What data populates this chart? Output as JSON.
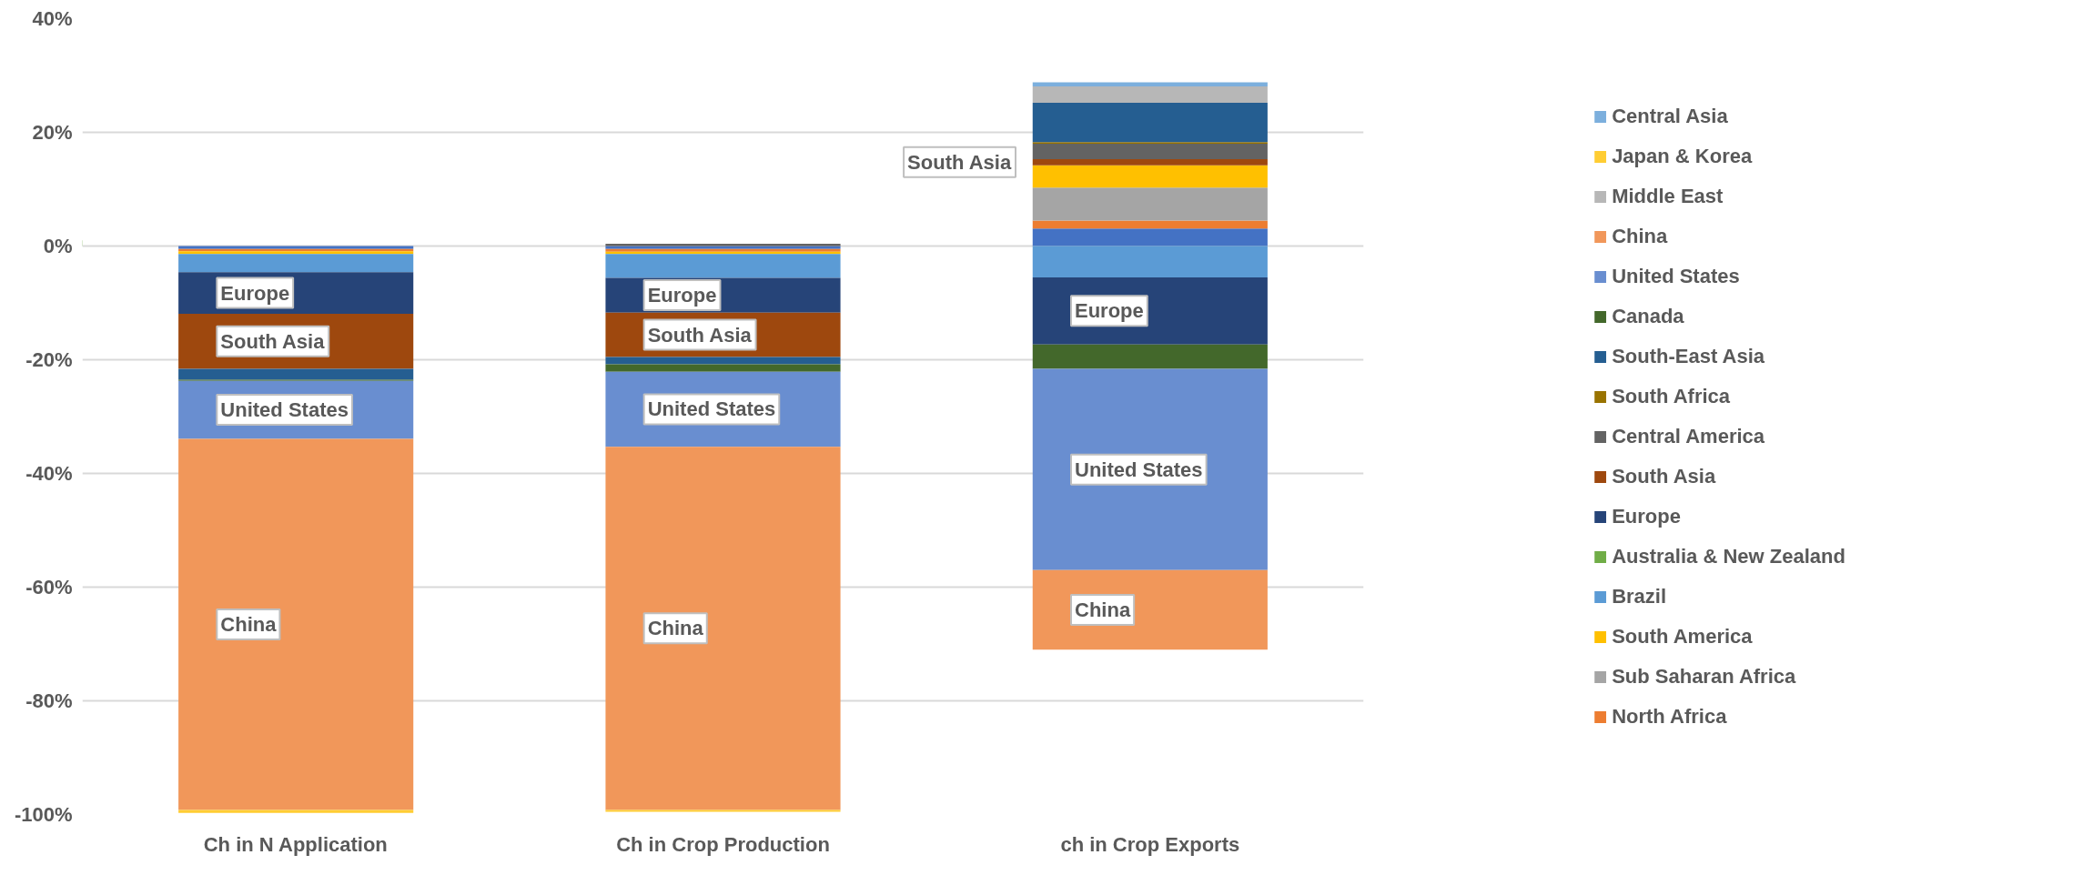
{
  "chart_data": {
    "type": "bar",
    "stacked": true,
    "categories": [
      "Ch in N Application",
      "Ch in Crop Production",
      "ch in Crop Exports"
    ],
    "series": [
      {
        "color": "#4472c4",
        "values": [
          -0.5,
          -0.5,
          3.1
        ]
      },
      {
        "name": "North Africa",
        "color": "#ed7d31",
        "values": [
          -0.4,
          -0.5,
          1.4
        ]
      },
      {
        "name": "Sub Saharan Africa",
        "color": "#a5a5a5",
        "values": [
          null,
          null,
          5.8
        ]
      },
      {
        "name": "South America",
        "color": "#ffc000",
        "values": [
          -0.5,
          -0.4,
          3.9
        ]
      },
      {
        "name": "Brazil",
        "color": "#5b9bd5",
        "values": [
          -3.2,
          -4.2,
          -5.5
        ]
      },
      {
        "name": "Australia & New Zealand",
        "color": "#70ad47",
        "values": [
          null,
          null,
          null
        ]
      },
      {
        "name": "Europe",
        "color": "#264478",
        "values": [
          -7.3,
          -6.1,
          -11.8
        ]
      },
      {
        "name": "South Asia",
        "color": "#9e480e",
        "values": [
          -9.7,
          -7.8,
          1.1
        ]
      },
      {
        "name": "Central America",
        "color": "#636363",
        "values": [
          null,
          0.4,
          2.7
        ]
      },
      {
        "name": "South Africa",
        "color": "#997300",
        "values": [
          null,
          null,
          0.3
        ]
      },
      {
        "name": "South-East Asia",
        "color": "#255e91",
        "values": [
          -1.9,
          -1.3,
          6.9
        ]
      },
      {
        "name": "Canada",
        "color": "#43682b",
        "values": [
          -0.2,
          -1.3,
          -4.3
        ]
      },
      {
        "name": "United States",
        "color": "#698ed0",
        "values": [
          -10.2,
          -13.2,
          -35.4
        ]
      },
      {
        "name": "China",
        "color": "#f1975a",
        "values": [
          -65.3,
          -63.9,
          -14.0
        ]
      },
      {
        "name": "Middle East",
        "color": "#b7b7b7",
        "values": [
          null,
          null,
          2.9
        ]
      },
      {
        "name": "Japan & Korea",
        "color": "#ffcd33",
        "values": [
          -0.5,
          -0.3,
          null
        ]
      },
      {
        "name": "Central Asia",
        "color": "#7cafdd",
        "values": [
          null,
          null,
          0.7
        ]
      }
    ],
    "ylim": [
      -100,
      40
    ],
    "yticks": [
      {
        "value": -100,
        "label": "-100%"
      },
      {
        "value": -80,
        "label": "-80%"
      },
      {
        "value": -60,
        "label": "-60%"
      },
      {
        "value": -40,
        "label": "-40%"
      },
      {
        "value": -20,
        "label": "-20%"
      },
      {
        "value": 0,
        "label": "0%"
      },
      {
        "value": 20,
        "label": "20%"
      },
      {
        "value": 40,
        "label": "40%"
      }
    ],
    "grid": "y",
    "legend": "right",
    "annotations": [
      "Europe",
      "South Asia",
      "United States",
      "China",
      "Europe",
      "South Asia",
      "United States",
      "China",
      "South Asia",
      "Europe",
      "United States",
      "China"
    ]
  }
}
